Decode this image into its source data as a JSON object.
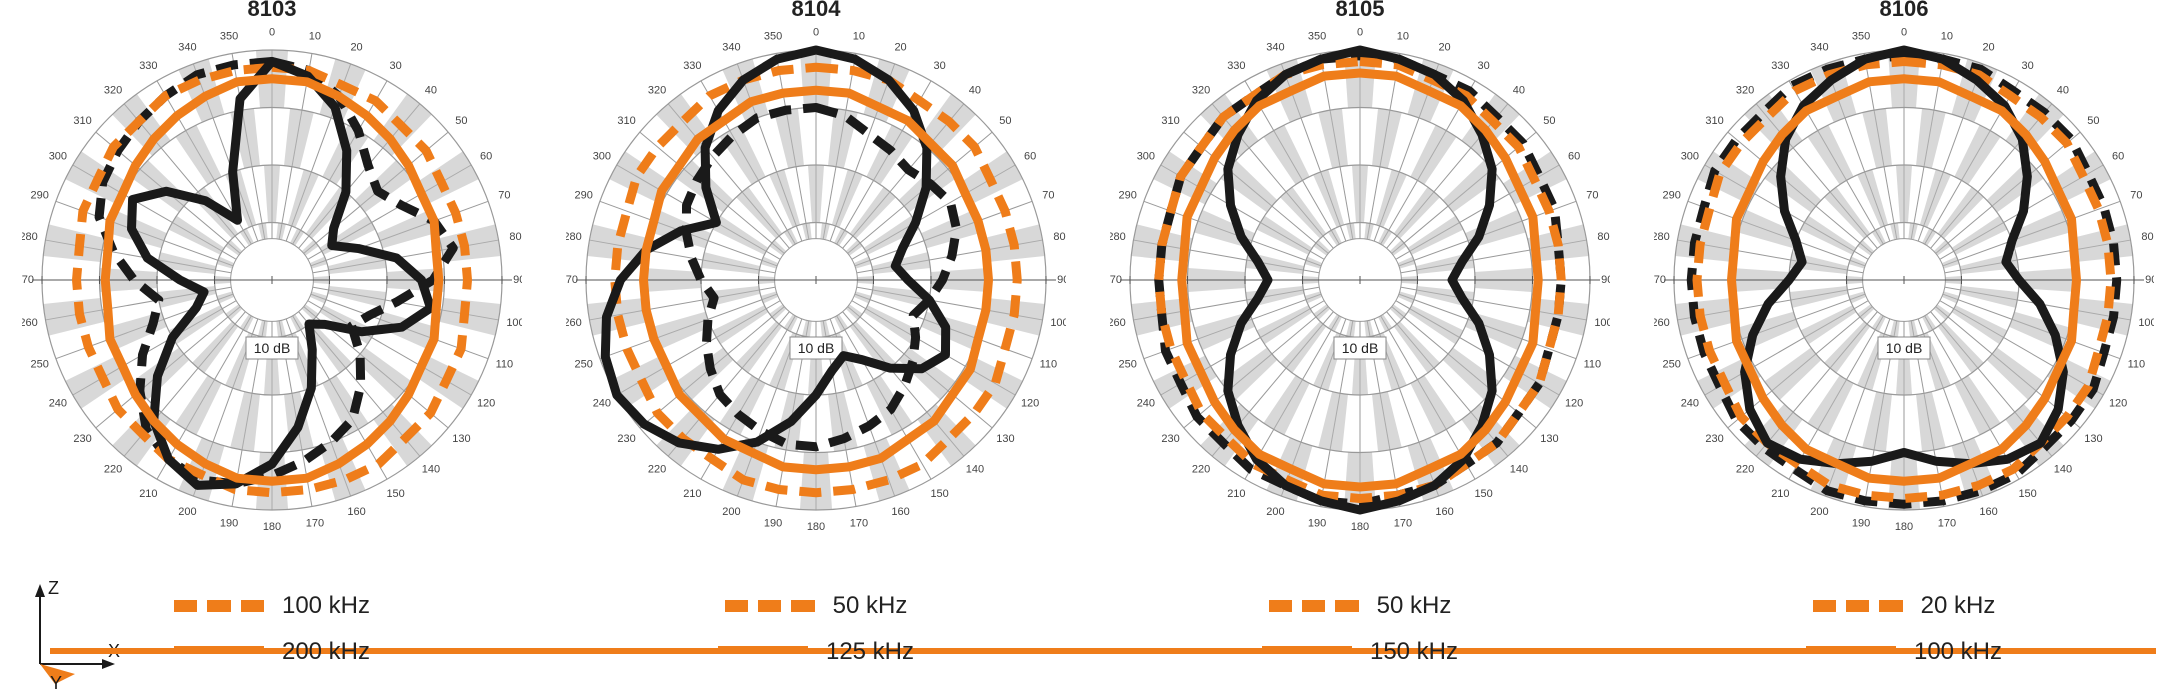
{
  "colors": {
    "orange": "#ef7d1a",
    "black": "#1a1a1a",
    "grid_gray": "#999999",
    "grid_fill": "#b8b8b8",
    "bg": "#ffffff"
  },
  "typography": {
    "title_fontsize": 22,
    "legend_fontsize": 24,
    "tick_fontsize": 11,
    "db_fontsize": 14
  },
  "radial": {
    "rings_db": [
      -40,
      -30,
      -20,
      -10,
      0
    ],
    "outer_db": 0,
    "inner_db": -40,
    "angles_deg": [
      0,
      10,
      20,
      30,
      40,
      50,
      60,
      70,
      80,
      90,
      100,
      110,
      120,
      130,
      140,
      150,
      160,
      170,
      180,
      190,
      200,
      210,
      220,
      230,
      240,
      250,
      260,
      270,
      280,
      290,
      300,
      310,
      320,
      330,
      340,
      350
    ],
    "db_label": "10 dB"
  },
  "line_style": {
    "dashed_pattern": "22 12",
    "stroke_width": 9
  },
  "charts": [
    {
      "title": "8103",
      "legend": [
        {
          "label": "100 kHz",
          "style": "dashed",
          "color": "#ef7d1a"
        },
        {
          "label": "200 kHz",
          "style": "solid",
          "color": "#ef7d1a"
        }
      ],
      "series": [
        {
          "color": "#1a1a1a",
          "style": "dashed",
          "r": [
            -2,
            -3,
            -6,
            -10,
            -14,
            -16,
            -14,
            -10,
            -8,
            -12,
            -18,
            -22,
            -24,
            -20,
            -16,
            -12,
            -10,
            -8,
            -6,
            -4,
            -3,
            -4,
            -6,
            -10,
            -14,
            -18,
            -20,
            -16,
            -12,
            -8,
            -6,
            -5,
            -4,
            -3,
            -2,
            -2
          ]
        },
        {
          "color": "#ef7d1a",
          "style": "dashed",
          "r": [
            -3,
            -3,
            -4,
            -4,
            -5,
            -5,
            -6,
            -6,
            -6,
            -6,
            -6,
            -5,
            -5,
            -4,
            -4,
            -3,
            -3,
            -3,
            -3,
            -3,
            -4,
            -4,
            -5,
            -5,
            -6,
            -6,
            -6,
            -6,
            -6,
            -5,
            -5,
            -4,
            -4,
            -3,
            -3,
            -3
          ]
        },
        {
          "color": "#1a1a1a",
          "style": "solid",
          "r": [
            -2,
            -4,
            -8,
            -14,
            -20,
            -26,
            -28,
            -24,
            -18,
            -14,
            -12,
            -16,
            -22,
            -28,
            -30,
            -26,
            -20,
            -14,
            -8,
            -4,
            -2,
            -4,
            -8,
            -14,
            -20,
            -26,
            -28,
            -24,
            -18,
            -14,
            -12,
            -16,
            -22,
            -28,
            -20,
            -8
          ]
        },
        {
          "color": "#ef7d1a",
          "style": "solid",
          "r": [
            -5,
            -5,
            -6,
            -7,
            -8,
            -9,
            -10,
            -10,
            -11,
            -11,
            -11,
            -10,
            -10,
            -9,
            -8,
            -7,
            -6,
            -5,
            -5,
            -5,
            -6,
            -7,
            -8,
            -9,
            -10,
            -10,
            -11,
            -11,
            -11,
            -10,
            -10,
            -9,
            -8,
            -7,
            -6,
            -5
          ]
        }
      ]
    },
    {
      "title": "8104",
      "legend": [
        {
          "label": "50 kHz",
          "style": "dashed",
          "color": "#ef7d1a"
        },
        {
          "label": "125 kHz",
          "style": "solid",
          "color": "#ef7d1a"
        }
      ],
      "series": [
        {
          "color": "#1a1a1a",
          "style": "dashed",
          "r": [
            -10,
            -11,
            -13,
            -14,
            -15,
            -14,
            -13,
            -14,
            -16,
            -18,
            -20,
            -22,
            -20,
            -18,
            -16,
            -14,
            -13,
            -12,
            -11,
            -11,
            -12,
            -13,
            -14,
            -16,
            -18,
            -20,
            -22,
            -20,
            -18,
            -16,
            -14,
            -13,
            -12,
            -11,
            -10,
            -10
          ]
        },
        {
          "color": "#ef7d1a",
          "style": "dashed",
          "r": [
            -3,
            -3,
            -3,
            -4,
            -4,
            -4,
            -5,
            -5,
            -5,
            -5,
            -5,
            -5,
            -4,
            -4,
            -4,
            -3,
            -3,
            -3,
            -3,
            -3,
            -3,
            -4,
            -4,
            -4,
            -5,
            -5,
            -5,
            -5,
            -5,
            -5,
            -4,
            -4,
            -4,
            -3,
            -3,
            -3
          ]
        },
        {
          "color": "#1a1a1a",
          "style": "solid",
          "r": [
            0,
            -1,
            -3,
            -6,
            -10,
            -15,
            -20,
            -24,
            -26,
            -24,
            -20,
            -16,
            -14,
            -16,
            -20,
            -24,
            -26,
            -24,
            -20,
            -15,
            -10,
            -6,
            -3,
            -1,
            0,
            -1,
            -3,
            -6,
            -10,
            -15,
            -20,
            -15,
            -10,
            -6,
            -3,
            -1
          ]
        },
        {
          "color": "#ef7d1a",
          "style": "solid",
          "r": [
            -7,
            -7,
            -8,
            -8,
            -9,
            -9,
            -10,
            -10,
            -10,
            -10,
            -10,
            -10,
            -9,
            -9,
            -8,
            -8,
            -7,
            -7,
            -7,
            -7,
            -8,
            -8,
            -9,
            -9,
            -10,
            -10,
            -10,
            -10,
            -10,
            -10,
            -9,
            -9,
            -8,
            -8,
            -7,
            -7
          ]
        }
      ]
    },
    {
      "title": "8105",
      "legend": [
        {
          "label": "50 kHz",
          "style": "dashed",
          "color": "#ef7d1a"
        },
        {
          "label": "150 kHz",
          "style": "solid",
          "color": "#ef7d1a"
        }
      ],
      "series": [
        {
          "color": "#1a1a1a",
          "style": "dashed",
          "r": [
            -1,
            -1,
            -2,
            -2,
            -3,
            -3,
            -4,
            -4,
            -5,
            -5,
            -5,
            -5,
            -4,
            -4,
            -3,
            -3,
            -2,
            -2,
            -1,
            -1,
            -2,
            -2,
            -3,
            -3,
            -4,
            -4,
            -5,
            -5,
            -5,
            -5,
            -4,
            -4,
            -3,
            -3,
            -2,
            -1
          ]
        },
        {
          "color": "#ef7d1a",
          "style": "dashed",
          "r": [
            -2,
            -2,
            -3,
            -3,
            -4,
            -4,
            -5,
            -5,
            -5,
            -5,
            -5,
            -5,
            -4,
            -4,
            -3,
            -3,
            -2,
            -2,
            -2,
            -2,
            -3,
            -3,
            -4,
            -4,
            -5,
            -5,
            -5,
            -5,
            -5,
            -5,
            -4,
            -4,
            -3,
            -3,
            -2,
            -2
          ]
        },
        {
          "color": "#1a1a1a",
          "style": "solid",
          "r": [
            0,
            -1,
            -2,
            -4,
            -7,
            -10,
            -14,
            -18,
            -22,
            -24,
            -22,
            -18,
            -14,
            -10,
            -7,
            -4,
            -2,
            -1,
            0,
            -1,
            -2,
            -4,
            -7,
            -10,
            -14,
            -18,
            -22,
            -24,
            -22,
            -18,
            -14,
            -10,
            -7,
            -4,
            -2,
            -1
          ]
        },
        {
          "color": "#ef7d1a",
          "style": "solid",
          "r": [
            -4,
            -4,
            -5,
            -5,
            -6,
            -7,
            -8,
            -8,
            -9,
            -9,
            -9,
            -8,
            -8,
            -7,
            -6,
            -5,
            -5,
            -4,
            -4,
            -4,
            -5,
            -5,
            -6,
            -7,
            -8,
            -8,
            -9,
            -9,
            -9,
            -8,
            -8,
            -7,
            -6,
            -5,
            -5,
            -4
          ]
        }
      ]
    },
    {
      "title": "8106",
      "legend": [
        {
          "label": "20 kHz",
          "style": "dashed",
          "color": "#ef7d1a"
        },
        {
          "label": "100 kHz",
          "style": "solid",
          "color": "#ef7d1a"
        }
      ],
      "series": [
        {
          "color": "#1a1a1a",
          "style": "dashed",
          "r": [
            -1,
            -1,
            -1,
            -2,
            -2,
            -2,
            -3,
            -3,
            -3,
            -3,
            -3,
            -3,
            -2,
            -2,
            -2,
            -1,
            -1,
            -1,
            -1,
            -1,
            -1,
            -2,
            -2,
            -2,
            -3,
            -3,
            -3,
            -3,
            -3,
            -3,
            -2,
            -2,
            -2,
            -1,
            -1,
            -1
          ]
        },
        {
          "color": "#ef7d1a",
          "style": "dashed",
          "r": [
            -2,
            -2,
            -2,
            -3,
            -3,
            -3,
            -4,
            -4,
            -4,
            -4,
            -4,
            -4,
            -3,
            -3,
            -3,
            -2,
            -2,
            -2,
            -2,
            -2,
            -2,
            -3,
            -3,
            -3,
            -4,
            -4,
            -4,
            -4,
            -4,
            -4,
            -3,
            -3,
            -3,
            -2,
            -2,
            -2
          ]
        },
        {
          "color": "#1a1a1a",
          "style": "solid",
          "r": [
            0,
            -1,
            -3,
            -5,
            -8,
            -12,
            -16,
            -20,
            -22,
            -20,
            -16,
            -12,
            -8,
            -5,
            -3,
            -4,
            -6,
            -8,
            -10,
            -8,
            -6,
            -4,
            -3,
            -5,
            -8,
            -12,
            -16,
            -20,
            -22,
            -20,
            -16,
            -12,
            -8,
            -5,
            -3,
            -1
          ]
        },
        {
          "color": "#ef7d1a",
          "style": "solid",
          "r": [
            -5,
            -5,
            -6,
            -6,
            -7,
            -8,
            -9,
            -9,
            -10,
            -10,
            -10,
            -9,
            -9,
            -8,
            -7,
            -6,
            -6,
            -5,
            -5,
            -5,
            -6,
            -6,
            -7,
            -8,
            -9,
            -9,
            -10,
            -10,
            -10,
            -9,
            -9,
            -8,
            -7,
            -6,
            -6,
            -5
          ]
        }
      ]
    }
  ],
  "axis_indicator": {
    "z_label": "Z",
    "x_label": "X",
    "y_label": "Y"
  }
}
